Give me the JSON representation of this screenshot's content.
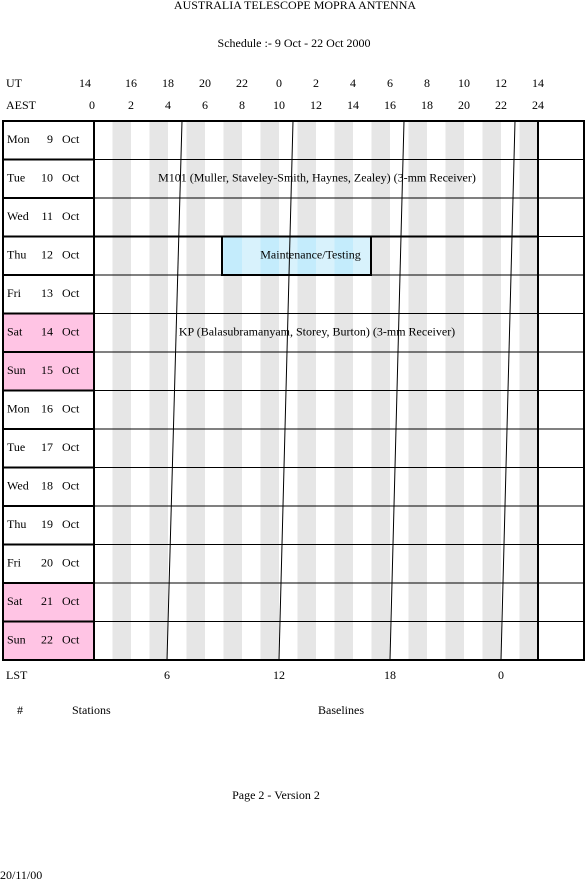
{
  "header": {
    "title": "AUSTRALIA TELESCOPE MOPRA ANTENNA",
    "schedule": "Schedule :- 9 Oct - 22 Oct  2000"
  },
  "ut": {
    "label": "UT",
    "hours": [
      14,
      16,
      18,
      20,
      22,
      0,
      2,
      4,
      6,
      8,
      10,
      12,
      14
    ]
  },
  "aest": {
    "label": "AEST",
    "hours": [
      0,
      2,
      4,
      6,
      8,
      10,
      12,
      14,
      16,
      18,
      20,
      22,
      24
    ]
  },
  "rows": [
    {
      "day": "Mon",
      "date": "9",
      "month": "Oct",
      "weekend": false
    },
    {
      "day": "Tue",
      "date": "10",
      "month": "Oct",
      "weekend": false,
      "event": "M101 (Muller, Staveley-Smith, Haynes, Zealey) (3-mm Receiver)"
    },
    {
      "day": "Wed",
      "date": "11",
      "month": "Oct",
      "weekend": false
    },
    {
      "day": "Thu",
      "date": "12",
      "month": "Oct",
      "weekend": false,
      "block": "Maintenance/Testing"
    },
    {
      "day": "Fri",
      "date": "13",
      "month": "Oct",
      "weekend": false
    },
    {
      "day": "Sat",
      "date": "14",
      "month": "Oct",
      "weekend": true,
      "event": "KP (Balasubramanyam, Storey, Burton) (3-mm Receiver)"
    },
    {
      "day": "Sun",
      "date": "15",
      "month": "Oct",
      "weekend": true
    },
    {
      "day": "Mon",
      "date": "16",
      "month": "Oct",
      "weekend": false
    },
    {
      "day": "Tue",
      "date": "17",
      "month": "Oct",
      "weekend": false
    },
    {
      "day": "Wed",
      "date": "18",
      "month": "Oct",
      "weekend": false
    },
    {
      "day": "Thu",
      "date": "19",
      "month": "Oct",
      "weekend": false
    },
    {
      "day": "Fri",
      "date": "20",
      "month": "Oct",
      "weekend": false
    },
    {
      "day": "Sat",
      "date": "21",
      "month": "Oct",
      "weekend": true
    },
    {
      "day": "Sun",
      "date": "22",
      "month": "Oct",
      "weekend": true
    }
  ],
  "lst": {
    "label": "LST",
    "hours": [
      6,
      12,
      18,
      0
    ]
  },
  "footer": {
    "hash": "#",
    "stations": "Stations",
    "baselines": "Baselines",
    "page": "Page 2 - Version 2",
    "date": "20/11/00"
  }
}
